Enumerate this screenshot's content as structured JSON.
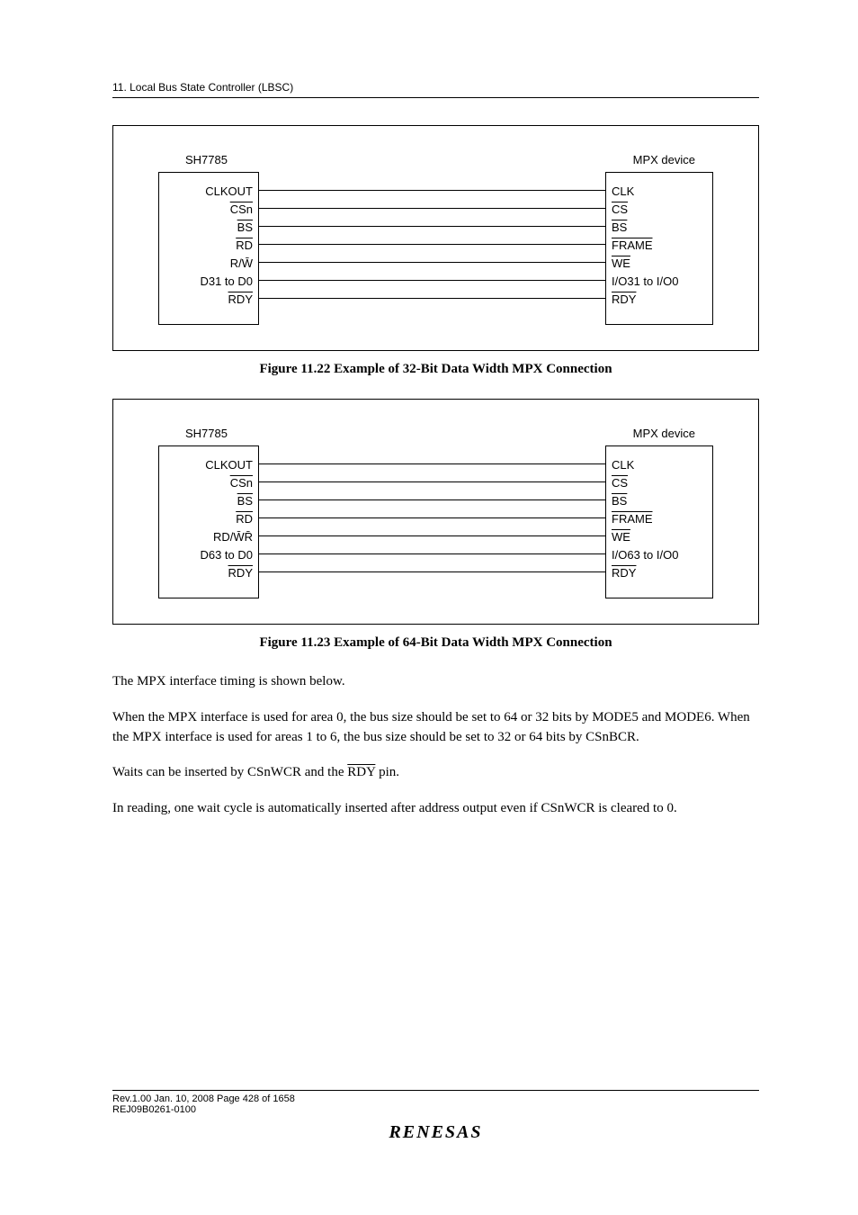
{
  "header": {
    "text": "11.   Local Bus State Controller (LBSC)"
  },
  "figure1": {
    "left_chip": "SH7785",
    "right_chip": "MPX device",
    "signals": [
      {
        "left": "CLKOUT",
        "right": "CLK",
        "left_over": false,
        "right_over": false
      },
      {
        "left": "CSn",
        "right": "CS",
        "left_over": true,
        "right_over": true
      },
      {
        "left": "BS",
        "right": "BS",
        "left_over": true,
        "right_over": true
      },
      {
        "left": "RD",
        "right": "FRAME",
        "left_over": true,
        "right_over": true
      },
      {
        "left": "R/W̄",
        "right": "WE",
        "left_over": false,
        "right_over": true
      },
      {
        "left": "D31 to D0",
        "right": "I/O31 to I/O0",
        "left_over": false,
        "right_over": false
      },
      {
        "left": "RDY",
        "right": "RDY",
        "left_over": true,
        "right_over": true
      }
    ],
    "caption": "Figure 11.22   Example of 32-Bit Data Width MPX Connection"
  },
  "figure2": {
    "left_chip": "SH7785",
    "right_chip": "MPX device",
    "signals": [
      {
        "left": "CLKOUT",
        "right": "CLK",
        "left_over": false,
        "right_over": false
      },
      {
        "left": "CSn",
        "right": "CS",
        "left_over": true,
        "right_over": true
      },
      {
        "left": "BS",
        "right": "BS",
        "left_over": true,
        "right_over": true
      },
      {
        "left": "RD",
        "right": "FRAME",
        "left_over": true,
        "right_over": true
      },
      {
        "left": "RD/W̄R̄",
        "right": "WE",
        "left_over": false,
        "right_over": true
      },
      {
        "left": "D63 to D0",
        "right": "I/O63 to I/O0",
        "left_over": false,
        "right_over": false
      },
      {
        "left": "RDY",
        "right": "RDY",
        "left_over": true,
        "right_over": true
      }
    ],
    "caption": "Figure 11.23   Example of 64-Bit Data Width MPX Connection"
  },
  "paragraphs": {
    "p1": "The MPX interface timing is shown below.",
    "p2": "When the MPX interface is used for area 0, the bus size should be set to 64 or 32 bits by MODE5 and MODE6. When the MPX interface is used for areas 1 to 6, the bus size should be set to 32 or 64 bits by CSnBCR.",
    "p3_pre": "Waits can be inserted by CSnWCR and the ",
    "p3_rdy": "RDY",
    "p3_post": " pin.",
    "p4": "In reading, one wait cycle is automatically inserted after address output even if CSnWCR is cleared to 0."
  },
  "footer": {
    "line1": "Rev.1.00  Jan. 10, 2008  Page 428 of 1658",
    "line2": "REJ09B0261-0100",
    "logo": "RENESAS"
  }
}
